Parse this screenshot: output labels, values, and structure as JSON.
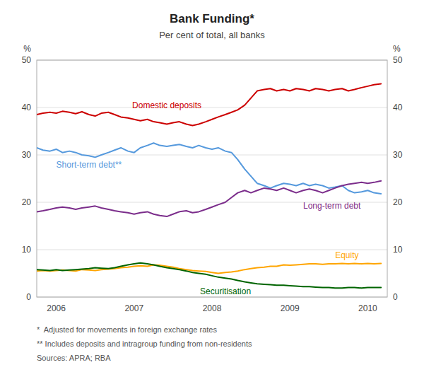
{
  "chart_data": {
    "type": "line",
    "title": "Bank Funding*",
    "subtitle": "Per cent of total, all banks",
    "footnotes": [
      "*  Adjusted for movements in foreign exchange rates",
      "** Includes deposits and intragroup funding from non-residents",
      "Sources: APRA; RBA"
    ],
    "ylabel": "%",
    "y2label": "%",
    "xlim": [
      2005.75,
      2010.25
    ],
    "xticks": [
      2006,
      2007,
      2008,
      2009,
      2010
    ],
    "ylim": [
      0,
      50
    ],
    "yticks": [
      0,
      10,
      20,
      30,
      40,
      50
    ],
    "y2lim": [
      0,
      50
    ],
    "y2ticks": [
      0,
      10,
      20,
      30,
      40,
      50
    ],
    "grid": true,
    "x": [
      2005.75,
      2005.83,
      2005.92,
      2006.0,
      2006.08,
      2006.17,
      2006.25,
      2006.33,
      2006.42,
      2006.5,
      2006.58,
      2006.67,
      2006.75,
      2006.83,
      2006.92,
      2007.0,
      2007.08,
      2007.17,
      2007.25,
      2007.33,
      2007.42,
      2007.5,
      2007.58,
      2007.67,
      2007.75,
      2007.83,
      2007.92,
      2008.0,
      2008.08,
      2008.17,
      2008.25,
      2008.33,
      2008.42,
      2008.5,
      2008.58,
      2008.67,
      2008.75,
      2008.83,
      2008.92,
      2009.0,
      2009.08,
      2009.17,
      2009.25,
      2009.33,
      2009.42,
      2009.5,
      2009.58,
      2009.67,
      2009.75,
      2009.83,
      2009.92,
      2010.0,
      2010.08,
      2010.17
    ],
    "series": [
      {
        "name": "Domestic deposits",
        "color": "#cc0000",
        "values": [
          38.5,
          38.8,
          39.0,
          38.8,
          39.2,
          39.0,
          38.7,
          39.1,
          38.5,
          38.2,
          38.8,
          39.0,
          38.5,
          38.0,
          37.8,
          37.5,
          37.2,
          37.5,
          37.0,
          36.8,
          36.5,
          36.8,
          37.0,
          36.5,
          36.2,
          36.5,
          37.0,
          37.5,
          38.0,
          38.5,
          39.0,
          39.5,
          40.5,
          42.0,
          43.5,
          43.8,
          44.0,
          43.5,
          43.8,
          43.5,
          44.0,
          43.8,
          43.5,
          44.0,
          43.8,
          43.5,
          43.8,
          44.0,
          43.5,
          43.8,
          44.2,
          44.5,
          44.8,
          45.0
        ]
      },
      {
        "name": "Short-term debt**",
        "color": "#5599dd",
        "values": [
          31.5,
          31.0,
          30.8,
          31.2,
          30.5,
          30.8,
          30.5,
          30.0,
          29.8,
          29.5,
          30.0,
          30.5,
          31.0,
          31.5,
          30.8,
          30.5,
          31.5,
          32.0,
          32.5,
          32.0,
          31.8,
          32.0,
          32.2,
          31.8,
          31.5,
          32.0,
          31.5,
          31.2,
          31.5,
          30.8,
          30.5,
          29.0,
          27.0,
          25.5,
          24.0,
          23.5,
          23.0,
          23.5,
          24.0,
          23.8,
          23.5,
          24.0,
          23.5,
          23.8,
          23.5,
          23.0,
          23.2,
          23.5,
          22.5,
          22.0,
          22.2,
          22.5,
          22.0,
          21.8
        ]
      },
      {
        "name": "Long-term debt",
        "color": "#7b2d8b",
        "values": [
          18.0,
          18.2,
          18.5,
          18.8,
          19.0,
          18.8,
          18.5,
          18.8,
          19.0,
          19.2,
          18.8,
          18.5,
          18.2,
          18.0,
          17.8,
          17.5,
          17.8,
          18.0,
          17.5,
          17.2,
          17.0,
          17.5,
          18.0,
          18.2,
          17.8,
          18.0,
          18.5,
          19.0,
          19.5,
          20.0,
          21.0,
          22.0,
          22.5,
          22.0,
          22.5,
          23.0,
          22.8,
          22.5,
          23.0,
          22.5,
          22.0,
          22.5,
          22.8,
          22.5,
          22.0,
          22.5,
          23.0,
          23.5,
          23.8,
          24.0,
          24.2,
          24.0,
          24.2,
          24.5
        ]
      },
      {
        "name": "Equity",
        "color": "#ffa500",
        "values": [
          5.5,
          5.6,
          5.5,
          5.6,
          5.7,
          5.6,
          5.5,
          5.8,
          5.7,
          5.6,
          5.8,
          5.9,
          6.0,
          6.2,
          6.3,
          6.5,
          6.6,
          6.5,
          6.8,
          6.7,
          6.5,
          6.3,
          6.0,
          5.8,
          5.6,
          5.5,
          5.4,
          5.2,
          5.0,
          5.2,
          5.3,
          5.5,
          5.8,
          6.0,
          6.2,
          6.3,
          6.5,
          6.5,
          6.8,
          6.7,
          6.8,
          6.9,
          7.0,
          7.0,
          6.9,
          7.0,
          7.0,
          7.1,
          7.0,
          7.1,
          7.0,
          7.1,
          7.0,
          7.1
        ]
      },
      {
        "name": "Securitisation",
        "color": "#006400",
        "values": [
          5.8,
          5.7,
          5.6,
          5.8,
          5.6,
          5.7,
          5.8,
          5.9,
          6.0,
          6.2,
          6.1,
          6.0,
          6.2,
          6.5,
          6.8,
          7.0,
          7.2,
          7.0,
          6.8,
          6.5,
          6.2,
          6.0,
          5.8,
          5.5,
          5.2,
          5.0,
          4.8,
          4.5,
          4.2,
          4.0,
          3.8,
          3.5,
          3.2,
          3.0,
          2.8,
          2.7,
          2.6,
          2.5,
          2.5,
          2.4,
          2.3,
          2.2,
          2.2,
          2.1,
          2.0,
          2.0,
          1.9,
          1.9,
          2.0,
          2.0,
          1.9,
          2.0,
          2.0,
          2.0
        ]
      }
    ]
  }
}
